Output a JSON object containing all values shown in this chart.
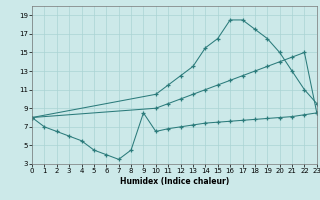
{
  "xlabel": "Humidex (Indice chaleur)",
  "bg_color": "#cce9e9",
  "line_color": "#2b7b7b",
  "grid_color": "#aad4d4",
  "xlim": [
    0,
    23
  ],
  "ylim": [
    3,
    20
  ],
  "xticks": [
    0,
    1,
    2,
    3,
    4,
    5,
    6,
    7,
    8,
    9,
    10,
    11,
    12,
    13,
    14,
    15,
    16,
    17,
    18,
    19,
    20,
    21,
    22,
    23
  ],
  "yticks": [
    3,
    5,
    7,
    9,
    11,
    13,
    15,
    17,
    19
  ],
  "curve1_x": [
    0,
    1,
    2,
    3,
    4,
    5,
    6,
    7,
    8,
    9,
    10,
    11,
    12,
    13,
    14,
    15,
    16,
    17,
    18,
    19,
    20,
    21,
    22,
    23
  ],
  "curve1_y": [
    8.0,
    7.0,
    6.5,
    6.0,
    5.5,
    4.5,
    4.0,
    3.5,
    4.5,
    8.5,
    6.5,
    6.8,
    7.0,
    7.2,
    7.4,
    7.5,
    7.6,
    7.7,
    7.8,
    7.9,
    8.0,
    8.1,
    8.3,
    8.5
  ],
  "curve2_x": [
    0,
    10,
    11,
    12,
    13,
    14,
    15,
    16,
    17,
    18,
    19,
    20,
    21,
    22,
    23
  ],
  "curve2_y": [
    8.0,
    9.0,
    9.5,
    10.0,
    10.5,
    11.0,
    11.5,
    12.0,
    12.5,
    13.0,
    13.5,
    14.0,
    14.5,
    15.0,
    8.5
  ],
  "curve3_x": [
    0,
    10,
    11,
    12,
    13,
    14,
    15,
    16,
    17,
    18,
    19,
    20,
    21,
    22,
    23
  ],
  "curve3_y": [
    8.0,
    10.5,
    11.5,
    12.5,
    13.5,
    15.5,
    16.5,
    18.5,
    18.5,
    17.5,
    16.5,
    15.0,
    13.0,
    11.0,
    9.5
  ]
}
